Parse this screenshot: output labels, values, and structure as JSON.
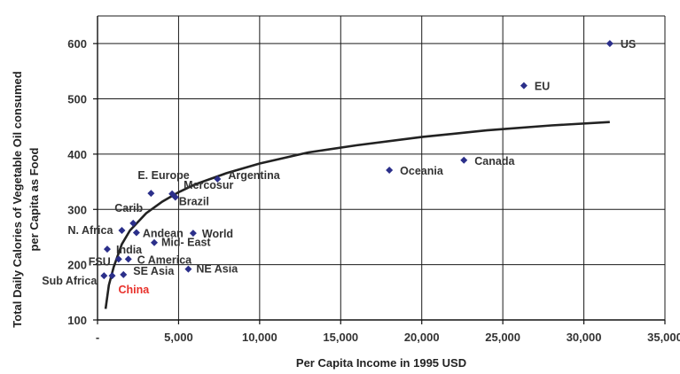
{
  "chart_data": {
    "type": "scatter",
    "title": "",
    "xlabel": "Per Capita Income in 1995 USD",
    "ylabel": [
      "Total Daily Calories of Vegetable Oil consumed",
      "per Capita as Food"
    ],
    "xlim": [
      0,
      35000
    ],
    "ylim": [
      100,
      650
    ],
    "x_ticks": [
      0,
      5000,
      10000,
      15000,
      20000,
      25000,
      30000,
      35000
    ],
    "x_tick_labels": [
      "-",
      "5,000",
      "10,000",
      "15,000",
      "20,000",
      "25,000",
      "30,000",
      "35,000"
    ],
    "y_ticks": [
      100,
      200,
      300,
      400,
      500,
      600
    ],
    "y_tick_labels": [
      "100",
      "200",
      "300",
      "400",
      "500",
      "600"
    ],
    "grid": "horizontal-and-vertical",
    "legend": "none",
    "marker_color": "#2b2f8a",
    "highlight_color": "#e8302a",
    "points": [
      {
        "label": "US",
        "x": 31600,
        "y": 600
      },
      {
        "label": "EU",
        "x": 26300,
        "y": 524
      },
      {
        "label": "Canada",
        "x": 22600,
        "y": 389
      },
      {
        "label": "Oceania",
        "x": 18000,
        "y": 371
      },
      {
        "label": "Argentina",
        "x": 7400,
        "y": 355
      },
      {
        "label": "E. Europe",
        "x": 3300,
        "y": 329
      },
      {
        "label": "Mercosur",
        "x": 4600,
        "y": 328
      },
      {
        "label": "Brazil",
        "x": 4800,
        "y": 322
      },
      {
        "label": "Carib",
        "x": 2200,
        "y": 275
      },
      {
        "label": "N. Africa",
        "x": 1500,
        "y": 262
      },
      {
        "label": "Andean",
        "x": 2400,
        "y": 258
      },
      {
        "label": "World",
        "x": 5900,
        "y": 257
      },
      {
        "label": "Mid- East",
        "x": 3500,
        "y": 240
      },
      {
        "label": "India",
        "x": 600,
        "y": 228
      },
      {
        "label": "FSU",
        "x": 1300,
        "y": 210
      },
      {
        "label": "C America",
        "x": 1900,
        "y": 210
      },
      {
        "label": "SE Asia",
        "x": 1600,
        "y": 182
      },
      {
        "label": "NE Asia",
        "x": 5600,
        "y": 192
      },
      {
        "label": "Sub Africa",
        "x": 400,
        "y": 180
      },
      {
        "label": "China",
        "x": 900,
        "y": 180,
        "highlight": true
      }
    ],
    "trendline": {
      "type": "logarithmic",
      "x": [
        500,
        700,
        1000,
        1500,
        2000,
        3000,
        4000,
        5000,
        6000,
        8000,
        10000,
        13000,
        16000,
        20000,
        24000,
        28000,
        31600
      ],
      "y": [
        120,
        163,
        196,
        237,
        262,
        293,
        314,
        331,
        345,
        366,
        383,
        403,
        416,
        431,
        443,
        452,
        458
      ]
    }
  }
}
